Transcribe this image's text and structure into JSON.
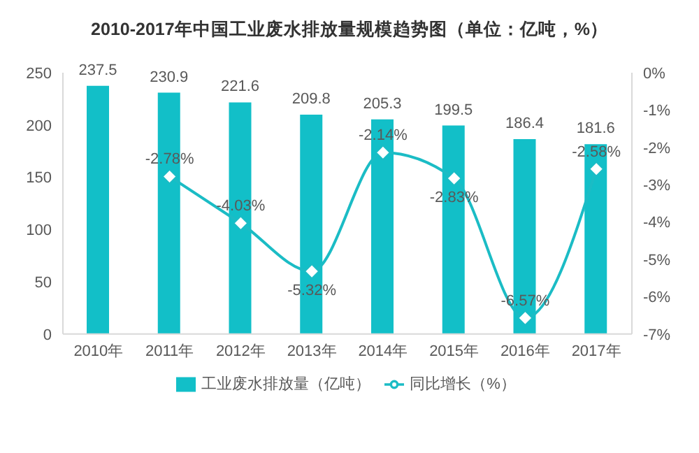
{
  "chart_data": {
    "type": "bar",
    "title": "2010-2017年中国工业废水排放量规模趋势图（单位：亿吨，%）",
    "categories": [
      "2010年",
      "2011年",
      "2012年",
      "2013年",
      "2014年",
      "2015年",
      "2016年",
      "2017年"
    ],
    "series": [
      {
        "name": "工业废水排放量（亿吨）",
        "color": "#12bfc8",
        "values": [
          237.5,
          230.9,
          221.6,
          209.8,
          205.3,
          199.5,
          186.4,
          181.6
        ],
        "value_labels": [
          "237.5",
          "230.9",
          "221.6",
          "209.8",
          "205.3",
          "199.5",
          "186.4",
          "181.6"
        ]
      },
      {
        "name": "同比增长（%）",
        "type": "line",
        "axis": "y2",
        "color": "#1bbcc5",
        "values": [
          null,
          -2.78,
          -4.03,
          -5.32,
          -2.14,
          -2.83,
          -6.57,
          -2.58
        ],
        "value_labels": [
          null,
          "-2.78%",
          "-4.03%",
          "-5.32%",
          "-2.14%",
          "-2.83%",
          "-6.57%",
          "-2.58%"
        ]
      }
    ],
    "ylim": [
      0,
      250
    ],
    "yticks": [
      0,
      50,
      100,
      150,
      200,
      250
    ],
    "y2lim": [
      -7,
      0
    ],
    "y2ticks": [
      {
        "value": 0,
        "label": "0%"
      },
      {
        "value": -1,
        "label": "-1%"
      },
      {
        "value": -2,
        "label": "-2%"
      },
      {
        "value": -3,
        "label": "-3%"
      },
      {
        "value": -4,
        "label": "-4%"
      },
      {
        "value": -5,
        "label": "-5%"
      },
      {
        "value": -6,
        "label": "-6%"
      },
      {
        "value": -7,
        "label": "-7%"
      }
    ],
    "marker": "diamond",
    "legend": "bottom"
  }
}
